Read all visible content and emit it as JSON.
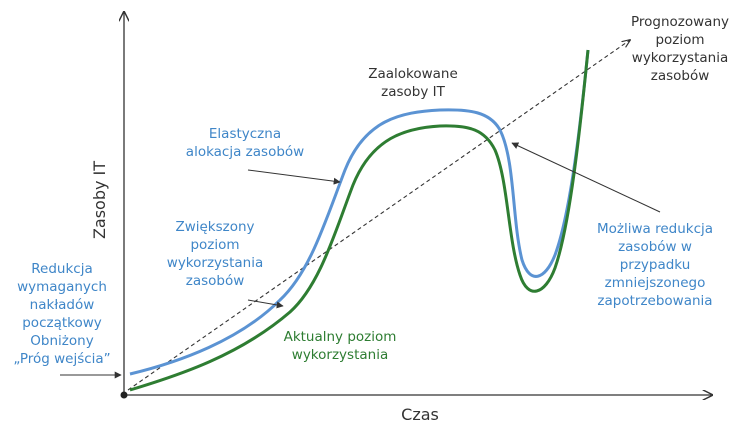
{
  "axes": {
    "x_label": "Czas",
    "y_label": "Zasoby IT"
  },
  "annotations": {
    "prognozowany": [
      "Prognozowany",
      "poziom",
      "wykorzystania",
      "zasobów"
    ],
    "zaalokowane": [
      "Zaalokowane",
      "zasoby IT"
    ],
    "elastyczna": [
      "Elastyczna",
      "alokacja zasobów"
    ],
    "zwiekszony": [
      "Zwiększony",
      "poziom",
      "wykorzystania",
      "zasobów"
    ],
    "redukcja": [
      "Redukcja",
      "wymaganych",
      "nakładów",
      "początkowy",
      "Obniżony",
      "„Próg wejścia”"
    ],
    "aktualny": [
      "Aktualny poziom",
      "wykorzystania"
    ],
    "mozliwa": [
      "Możliwa redukcja",
      "zasobów w",
      "przypadku",
      "zmniejszonego",
      "zapotrzebowania"
    ]
  },
  "colors": {
    "allocated": "#5b93d3",
    "actual": "#2e7d32",
    "blue_text": "#3f86c8",
    "green_text": "#2e7d32",
    "axis": "#333333"
  }
}
